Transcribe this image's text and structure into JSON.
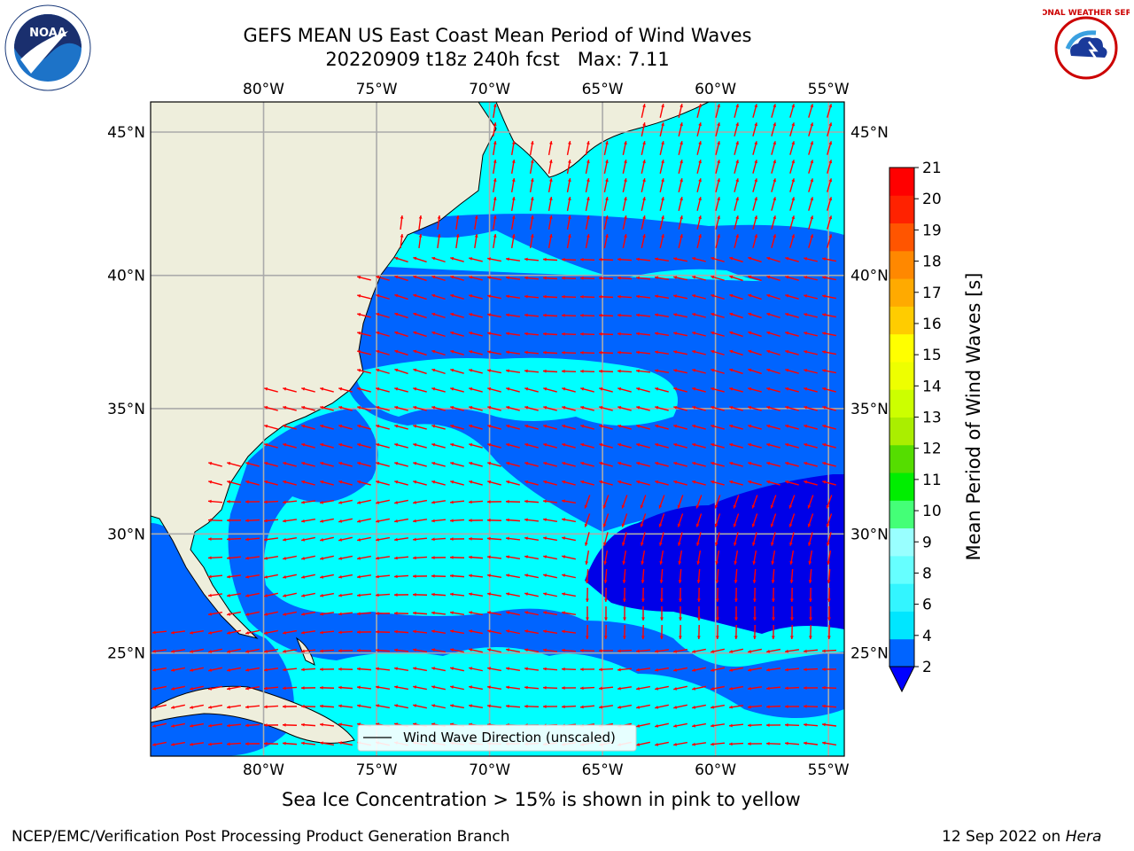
{
  "header": {
    "title": "GEFS MEAN US East Coast Mean Period of Wind Waves",
    "subtitle_date": "20220909 t18z 240h fcst",
    "subtitle_max": "Max: 7.11"
  },
  "logos": {
    "left": {
      "icon": "noaa-logo-icon",
      "text": "NOAA"
    },
    "right": {
      "icon": "nws-logo-icon",
      "text": "NATIONAL WEATHER SERVICE"
    }
  },
  "chart_data": {
    "type": "heatmap",
    "title": "GEFS MEAN US East Coast Mean Period of Wind Waves",
    "colorbar_label": "Mean Period of Wind Waves [s]",
    "colorbar_ticks": [
      2,
      4,
      6,
      8,
      9,
      10,
      11,
      12,
      13,
      14,
      15,
      16,
      17,
      18,
      19,
      20,
      21
    ],
    "colorbar_colors": [
      "#0064ff",
      "#00e6ff",
      "#33f5ff",
      "#66ffff",
      "#99ffff",
      "#44ff77",
      "#00ee00",
      "#55dd00",
      "#aaee00",
      "#ccff00",
      "#eeff00",
      "#ffff00",
      "#ffcc00",
      "#ffaa00",
      "#ff8800",
      "#ff5500",
      "#ff2200",
      "#ff0000"
    ],
    "colorbar_extend_min_color": "#0000ff",
    "lon_ticks": [
      "80°W",
      "75°W",
      "70°W",
      "65°W",
      "60°W",
      "55°W"
    ],
    "lon_values": [
      -80,
      -75,
      -70,
      -65,
      -60,
      -55
    ],
    "lat_ticks": [
      "45°N",
      "40°N",
      "35°N",
      "30°N",
      "25°N"
    ],
    "lat_values": [
      45,
      40,
      35,
      30,
      25
    ],
    "lon_range": [
      -85,
      -54.3
    ],
    "lat_range": [
      20.5,
      46
    ],
    "max_value": 7.11,
    "legend": {
      "label": "Wind Wave Direction (unscaled)",
      "placement": "lower-center"
    },
    "vector_color": "#ff0000",
    "land_color": "#eeeedc",
    "grid": true
  },
  "footer": {
    "ice_note": "Sea Ice Concentration > 15% is shown in pink to yellow",
    "branch": "NCEP/EMC/Verification Post Processing Product Generation Branch",
    "date": "12 Sep 2022 on",
    "host": "Hera"
  }
}
